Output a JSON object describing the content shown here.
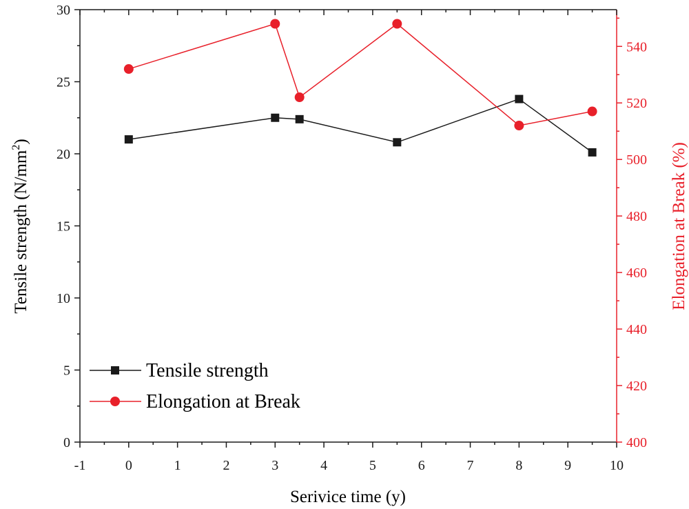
{
  "chart_data": {
    "type": "line",
    "x": [
      0,
      3,
      3.5,
      5.5,
      8,
      9.5
    ],
    "xlabel": "Serivice time (y)",
    "xlim": [
      -1,
      10
    ],
    "xticks": [
      -1,
      0,
      1,
      2,
      3,
      4,
      5,
      6,
      7,
      8,
      9,
      10
    ],
    "ylabel_left": "Tensile strength (N/mm",
    "ylabel_left_sup": "2",
    "ylabel_left_close": ")",
    "ylim_left": [
      0,
      30
    ],
    "yticks_left": [
      0,
      5,
      10,
      15,
      20,
      25,
      30
    ],
    "ylabel_right": "Elongation at Break (%)",
    "ylim_right": [
      400,
      553
    ],
    "yticks_right": [
      400,
      420,
      440,
      460,
      480,
      500,
      520,
      540
    ],
    "grid": false,
    "legend_position": "bottom-left",
    "series": [
      {
        "name": "Tensile strength",
        "axis": "left",
        "marker": "square",
        "color": "#1a1a1a",
        "values": [
          21.0,
          22.5,
          22.4,
          20.8,
          23.8,
          20.1
        ]
      },
      {
        "name": "Elongation at Break",
        "axis": "right",
        "marker": "circle",
        "color": "#e8202a",
        "values": [
          532,
          548,
          522,
          548,
          512,
          517
        ]
      }
    ]
  },
  "colors": {
    "axis_left": "#1a1a1a",
    "axis_right": "#e8202a"
  }
}
